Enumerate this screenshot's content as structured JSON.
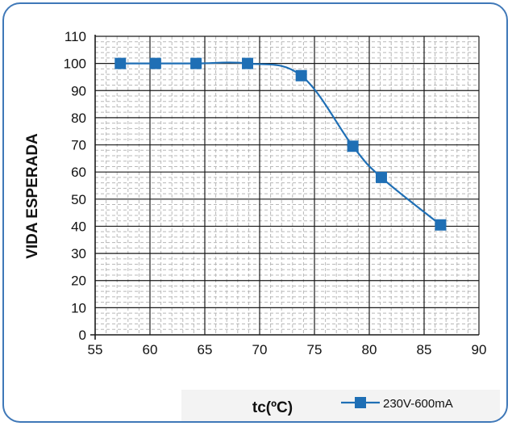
{
  "chart_data": {
    "type": "line",
    "xlabel": "tc(ºC)",
    "ylabel": "VIDA ESPERADA",
    "xlim": [
      55,
      90
    ],
    "ylim": [
      0,
      110
    ],
    "x_ticks": [
      "55",
      "60",
      "65",
      "70",
      "75",
      "80",
      "85",
      "90"
    ],
    "y_ticks": [
      "0",
      "10",
      "20",
      "30",
      "40",
      "50",
      "60",
      "70",
      "80",
      "90",
      "100",
      "110"
    ],
    "grid": true,
    "legend_position": "bottom-right",
    "series": [
      {
        "name": "230V-600mA",
        "color": "#1f6fb5",
        "marker": "square",
        "x": [
          57.3,
          60.5,
          64.2,
          68.9,
          73.8,
          78.5,
          81.1,
          86.5
        ],
        "y": [
          100,
          100,
          100,
          100,
          95.5,
          69.5,
          58,
          40.5
        ]
      }
    ]
  }
}
